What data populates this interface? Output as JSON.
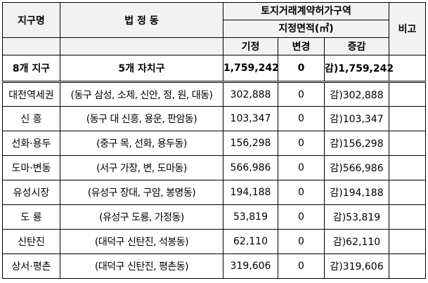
{
  "table": {
    "headers": {
      "district": "지구명",
      "legal_dong": "법 정 동",
      "area_group_line1": "토지거래계약허가구역",
      "area_group_line2": "지정면적(㎡)",
      "existing": "기정",
      "change": "변경",
      "diff": "증감",
      "note": "비고"
    },
    "summary": {
      "district": "8개 지구",
      "legal_dong": "5개 자치구",
      "existing": "1,759,242",
      "change": "0",
      "diff": "감)1,759,242",
      "note": ""
    },
    "rows": [
      {
        "district": "대전역세권",
        "legal_dong": "(동구 삼성, 소제, 신안, 정, 원, 대동)",
        "existing": "302,888",
        "change": "0",
        "diff": "감)302,888",
        "note": ""
      },
      {
        "district": "신 흥",
        "legal_dong": "(동구 대 신흥, 용운, 판암동)",
        "existing": "103,347",
        "change": "0",
        "diff": "감)103,347",
        "note": ""
      },
      {
        "district": "선화·용두",
        "legal_dong": "(중구 목, 선화, 용두동)",
        "existing": "156,298",
        "change": "0",
        "diff": "감)156,298",
        "note": ""
      },
      {
        "district": "도마·변동",
        "legal_dong": "(서구 가장, 변, 도마동)",
        "existing": "566,986",
        "change": "0",
        "diff": "감)566,986",
        "note": ""
      },
      {
        "district": "유성시장",
        "legal_dong": "(유성구 장대, 구암, 봉명동)",
        "existing": "194,188",
        "change": "0",
        "diff": "감)194,188",
        "note": ""
      },
      {
        "district": "도 룡",
        "legal_dong": "(유성구 도룡, 가정동)",
        "existing": "53,819",
        "change": "0",
        "diff": "감)53,819",
        "note": ""
      },
      {
        "district": "신탄진",
        "legal_dong": "(대덕구 신탄진, 석봉동)",
        "existing": "62,110",
        "change": "0",
        "diff": "감)62,110",
        "note": ""
      },
      {
        "district": "상서·평촌",
        "legal_dong": "(대덕구 신탄진, 평촌동)",
        "existing": "319,606",
        "change": "0",
        "diff": "감)319,606",
        "note": ""
      }
    ]
  }
}
